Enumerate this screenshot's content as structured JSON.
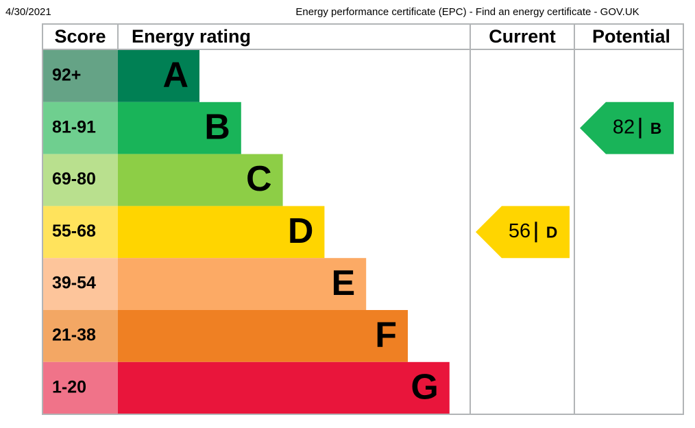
{
  "header": {
    "date": "4/30/2021",
    "title": "Energy performance certificate (EPC) - Find an energy certificate - GOV.UK"
  },
  "table": {
    "columns": [
      "Score",
      "Energy rating",
      "Current",
      "Potential"
    ],
    "bands": [
      {
        "score": "92+",
        "rating": "A",
        "color": "#008054",
        "score_color": "#65a386"
      },
      {
        "score": "81-91",
        "rating": "B",
        "color": "#19b459",
        "score_color": "#6fcf8f"
      },
      {
        "score": "69-80",
        "rating": "C",
        "color": "#8dce46",
        "score_color": "#b9e08e"
      },
      {
        "score": "55-68",
        "rating": "D",
        "color": "#ffd500",
        "score_color": "#ffe35c"
      },
      {
        "score": "39-54",
        "rating": "E",
        "color": "#fcaa65",
        "score_color": "#fdc59b"
      },
      {
        "score": "21-38",
        "rating": "F",
        "color": "#ef8023",
        "score_color": "#f3a764"
      },
      {
        "score": "1-20",
        "rating": "G",
        "color": "#e9153b",
        "score_color": "#f07389"
      }
    ]
  },
  "current": {
    "score": 56,
    "rating": "D"
  },
  "potential": {
    "score": 82,
    "rating": "B"
  }
}
